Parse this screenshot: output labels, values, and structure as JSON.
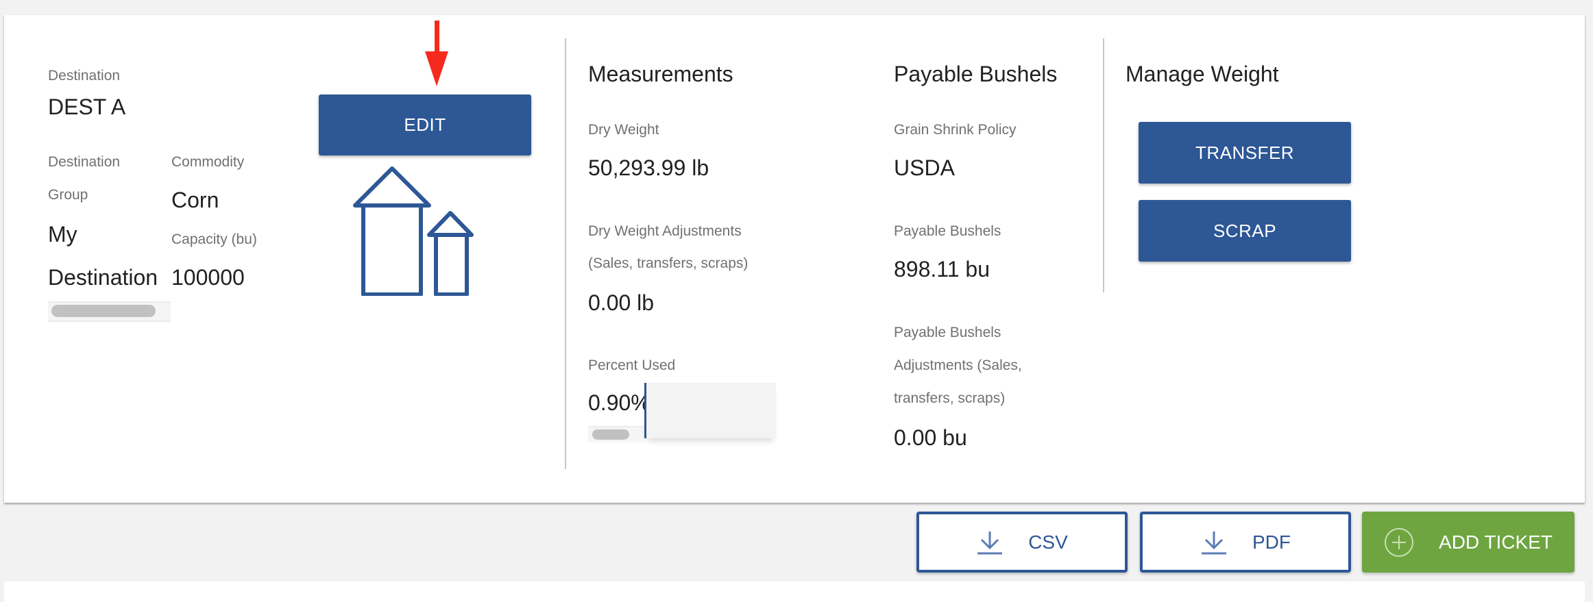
{
  "destination": {
    "label": "Destination",
    "value": "DEST A",
    "group_label_1": "Destination",
    "group_label_2": "Group",
    "group_value_1": "My",
    "group_value_2": "Destination",
    "commodity_label": "Commodity",
    "commodity_value": "Corn",
    "capacity_label": "Capacity (bu)",
    "capacity_value": "100000",
    "edit_label": "EDIT",
    "icon": "silo-icon"
  },
  "measurements": {
    "title": "Measurements",
    "dry_weight_label": "Dry Weight",
    "dry_weight_value": "50,293.99 lb",
    "adjustments_label_1": "Dry Weight Adjustments",
    "adjustments_label_2": "(Sales, transfers, scraps)",
    "adjustments_value": "0.00 lb",
    "percent_used_label": "Percent Used",
    "percent_used_value": "0.90%"
  },
  "payable": {
    "title": "Payable Bushels",
    "policy_label": "Grain Shrink Policy",
    "policy_value": "USDA",
    "bushels_label": "Payable Bushels",
    "bushels_value": "898.11 bu",
    "adj_label_1": "Payable Bushels",
    "adj_label_2": "Adjustments (Sales,",
    "adj_label_3": "transfers, scraps)",
    "adj_value": "0.00 bu"
  },
  "manage": {
    "title": "Manage Weight",
    "transfer_label": "TRANSFER",
    "scrap_label": "SCRAP"
  },
  "actions": {
    "csv_label": "CSV",
    "pdf_label": "PDF",
    "add_ticket_label": "ADD TICKET"
  },
  "colors": {
    "primary": "#2d5795",
    "success": "#6ea540",
    "annotation_arrow": "#f52a1f"
  }
}
